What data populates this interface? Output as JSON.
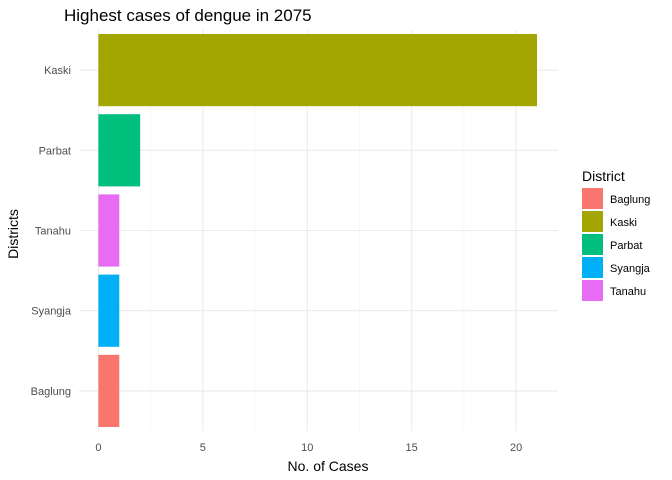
{
  "chart_data": {
    "type": "bar",
    "orientation": "horizontal",
    "title": "Highest cases of dengue in 2075",
    "xlabel": "No. of Cases",
    "ylabel": "Districts",
    "categories": [
      "Baglung",
      "Syangja",
      "Tanahu",
      "Parbat",
      "Kaski"
    ],
    "values": [
      1,
      1,
      1,
      2,
      21
    ],
    "colors": [
      "#F8766D",
      "#00B0F6",
      "#E76BF3",
      "#00BF7D",
      "#A3A500"
    ],
    "xlim": [
      0,
      22
    ],
    "xticks": [
      0,
      5,
      10,
      15,
      20
    ],
    "grid": true,
    "legend": {
      "title": "District",
      "position": "right",
      "entries": [
        {
          "label": "Baglung",
          "color": "#F8766D"
        },
        {
          "label": "Kaski",
          "color": "#A3A500"
        },
        {
          "label": "Parbat",
          "color": "#00BF7D"
        },
        {
          "label": "Syangja",
          "color": "#00B0F6"
        },
        {
          "label": "Tanahu",
          "color": "#E76BF3"
        }
      ]
    }
  }
}
